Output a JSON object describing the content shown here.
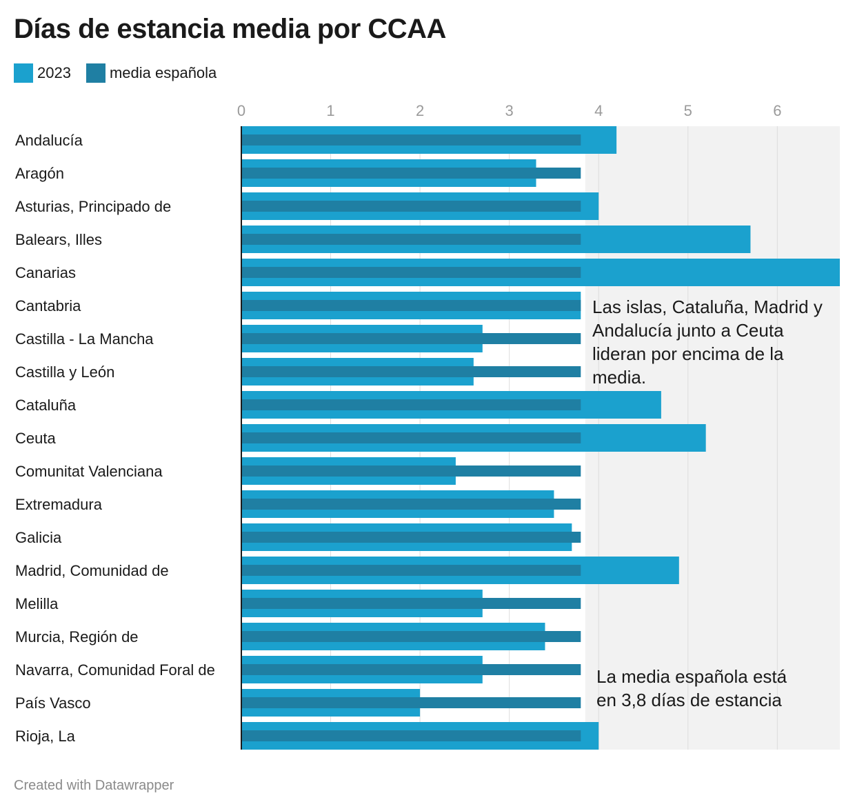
{
  "title": "Días de estancia media por CCAA",
  "legend": {
    "series_2023": "2023",
    "series_media": "media española"
  },
  "footer": "Created with Datawrapper",
  "colors": {
    "bar_2023": "#1ba1ce",
    "bar_media": "#1f7fa3",
    "highlight_bg": "#f2f2f2",
    "grid": "#dcdcdc",
    "axis": "#1a1a1a",
    "tick_text": "#9a9a9a"
  },
  "annotations": [
    "Las islas, Cataluña, Madrid y Andalucía junto a Ceuta lideran por encima de la media.",
    "La media española está en 3,8 días de estancia"
  ],
  "chart_data": {
    "type": "bar",
    "orientation": "horizontal",
    "title": "Días de estancia media por CCAA",
    "xlabel": "",
    "ylabel": "",
    "xlim": [
      0,
      6.7
    ],
    "ticks": [
      0,
      1,
      2,
      3,
      4,
      5,
      6
    ],
    "highlight_range": [
      3.85,
      6.7
    ],
    "grid": true,
    "legend_position": "top-left",
    "categories": [
      "Andalucía",
      "Aragón",
      "Asturias, Principado de",
      "Balears, Illes",
      "Canarias",
      "Cantabria",
      "Castilla - La Mancha",
      "Castilla y León",
      "Cataluña",
      "Ceuta",
      "Comunitat Valenciana",
      "Extremadura",
      "Galicia",
      "Madrid, Comunidad de",
      "Melilla",
      "Murcia, Región de",
      "Navarra, Comunidad Foral de",
      "País Vasco",
      "Rioja, La"
    ],
    "series": [
      {
        "name": "2023",
        "values": [
          4.2,
          3.3,
          4.0,
          5.7,
          6.7,
          3.8,
          2.7,
          2.6,
          4.7,
          5.2,
          2.4,
          3.5,
          3.7,
          4.9,
          2.7,
          3.4,
          2.7,
          2.0,
          4.0
        ]
      },
      {
        "name": "media española",
        "values": [
          3.8,
          3.8,
          3.8,
          3.8,
          3.8,
          3.8,
          3.8,
          3.8,
          3.8,
          3.8,
          3.8,
          3.8,
          3.8,
          3.8,
          3.8,
          3.8,
          3.8,
          3.8,
          3.8
        ]
      }
    ]
  }
}
